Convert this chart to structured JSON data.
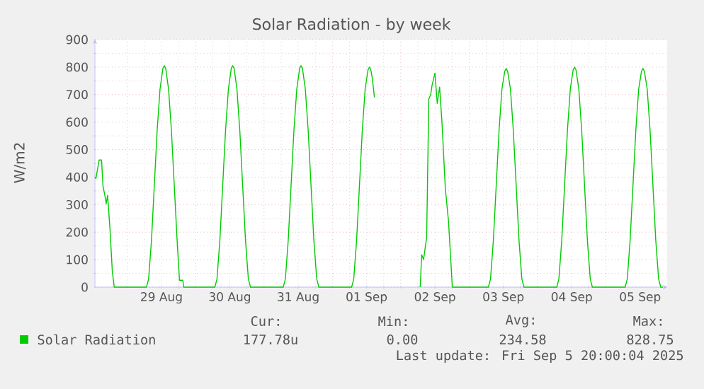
{
  "chart_data": {
    "type": "line",
    "title": "Solar Radiation - by week",
    "ylabel": "W/m2",
    "xlim": [
      "2025-08-28T12:39",
      "2025-09-05T21:30"
    ],
    "ylim": [
      0,
      900
    ],
    "yticks": [
      0,
      100,
      200,
      300,
      400,
      500,
      600,
      700,
      800,
      900
    ],
    "xticks": [
      {
        "value": "2025-08-29T00:00",
        "label": null
      },
      {
        "value": "2025-08-30T00:00",
        "label": null
      },
      {
        "value": "2025-08-31T00:00",
        "label": null
      },
      {
        "value": "2025-09-01T00:00",
        "label": null
      },
      {
        "value": "2025-09-02T00:00",
        "label": null
      },
      {
        "value": "2025-09-03T00:00",
        "label": null
      },
      {
        "value": "2025-09-04T00:00",
        "label": null
      },
      {
        "value": "2025-09-05T00:00",
        "label": null
      },
      {
        "value": "2025-08-29T12:00",
        "label": "29 Aug"
      },
      {
        "value": "2025-08-30T12:00",
        "label": "30 Aug"
      },
      {
        "value": "2025-08-31T12:00",
        "label": "31 Aug"
      },
      {
        "value": "2025-09-01T12:00",
        "label": "01 Sep"
      },
      {
        "value": "2025-09-02T12:00",
        "label": "02 Sep"
      },
      {
        "value": "2025-09-03T12:00",
        "label": "03 Sep"
      },
      {
        "value": "2025-09-04T12:00",
        "label": "04 Sep"
      },
      {
        "value": "2025-09-05T12:00",
        "label": "05 Sep"
      }
    ],
    "grid": true,
    "legend": "bottom left",
    "annotations": [
      "Cur:",
      "177.78u",
      "Min:",
      "0.00",
      "Avg:",
      "234.58",
      "Max:",
      "828.75",
      "Last update: Fri Sep  5 20:00:04 2025"
    ],
    "series": [
      {
        "name": "Solar Radiation",
        "color": "#00cc00",
        "x": [
          "2025-08-28T12:39",
          "2025-08-28T13:00",
          "2025-08-28T14:08",
          "2025-08-28T14:59",
          "2025-08-28T15:29",
          "2025-08-28T16:08",
          "2025-08-28T16:37",
          "2025-08-28T17:07",
          "2025-08-28T17:58",
          "2025-08-28T18:45",
          "2025-08-28T19:26",
          "2025-08-29T06:45",
          "2025-08-29T07:30",
          "2025-08-29T08:30",
          "2025-08-29T09:30",
          "2025-08-29T10:30",
          "2025-08-29T11:30",
          "2025-08-29T12:30",
          "2025-08-29T13:00",
          "2025-08-29T13:30",
          "2025-08-29T14:30",
          "2025-08-29T15:30",
          "2025-08-29T16:30",
          "2025-08-29T17:30",
          "2025-08-29T18:20",
          "2025-08-29T19:30",
          "2025-08-29T19:50",
          "2025-08-30T06:45",
          "2025-08-30T07:30",
          "2025-08-30T08:30",
          "2025-08-30T09:30",
          "2025-08-30T10:30",
          "2025-08-30T11:30",
          "2025-08-30T12:30",
          "2025-08-30T13:00",
          "2025-08-30T13:30",
          "2025-08-30T14:30",
          "2025-08-30T15:30",
          "2025-08-30T16:30",
          "2025-08-30T17:30",
          "2025-08-30T18:30",
          "2025-08-30T19:15",
          "2025-08-31T06:45",
          "2025-08-31T07:30",
          "2025-08-31T08:30",
          "2025-08-31T09:30",
          "2025-08-31T10:30",
          "2025-08-31T11:30",
          "2025-08-31T12:30",
          "2025-08-31T13:00",
          "2025-08-31T13:30",
          "2025-08-31T14:30",
          "2025-08-31T15:30",
          "2025-08-31T16:30",
          "2025-08-31T17:30",
          "2025-08-31T18:30",
          "2025-08-31T19:15",
          "2025-09-01T06:45",
          "2025-09-01T07:30",
          "2025-09-01T08:30",
          "2025-09-01T09:30",
          "2025-09-01T10:30",
          "2025-09-01T11:30",
          "2025-09-01T12:30",
          "2025-09-01T13:00",
          "2025-09-01T13:30",
          "2025-09-01T14:00",
          "2025-09-01T14:45",
          "2025-09-01T20:00",
          "2025-09-02T06:50",
          "2025-09-02T07:20",
          "2025-09-02T08:00",
          "2025-09-02T08:40",
          "2025-09-02T09:05",
          "2025-09-02T09:50",
          "2025-09-02T10:30",
          "2025-09-02T11:00",
          "2025-09-02T12:00",
          "2025-09-02T12:48",
          "2025-09-02T13:38",
          "2025-09-02T14:29",
          "2025-09-02T15:38",
          "2025-09-02T16:46",
          "2025-09-02T18:06",
          "2025-09-03T06:45",
          "2025-09-03T07:30",
          "2025-09-03T08:30",
          "2025-09-03T09:30",
          "2025-09-03T10:30",
          "2025-09-03T11:30",
          "2025-09-03T12:30",
          "2025-09-03T13:00",
          "2025-09-03T13:30",
          "2025-09-03T14:30",
          "2025-09-03T15:30",
          "2025-09-03T16:30",
          "2025-09-03T17:30",
          "2025-09-03T18:30",
          "2025-09-03T19:15",
          "2025-09-04T06:45",
          "2025-09-04T07:30",
          "2025-09-04T08:30",
          "2025-09-04T09:30",
          "2025-09-04T10:30",
          "2025-09-04T11:30",
          "2025-09-04T12:30",
          "2025-09-04T13:00",
          "2025-09-04T13:30",
          "2025-09-04T14:30",
          "2025-09-04T15:30",
          "2025-09-04T16:30",
          "2025-09-04T17:30",
          "2025-09-04T18:30",
          "2025-09-04T19:15",
          "2025-09-05T06:45",
          "2025-09-05T07:30",
          "2025-09-05T08:30",
          "2025-09-05T09:30",
          "2025-09-05T10:30",
          "2025-09-05T11:30",
          "2025-09-05T12:30",
          "2025-09-05T13:00",
          "2025-09-05T13:30",
          "2025-09-05T14:30",
          "2025-09-05T15:30",
          "2025-09-05T16:30",
          "2025-09-05T17:30",
          "2025-09-05T18:30",
          "2025-09-05T19:15",
          "2025-09-05T20:00"
        ],
        "values": [
          400,
          395,
          462,
          462,
          367,
          334,
          303,
          334,
          206,
          58,
          0,
          0,
          30,
          170,
          370,
          570,
          720,
          795,
          805,
          795,
          720,
          570,
          370,
          170,
          25,
          25,
          0,
          0,
          30,
          170,
          370,
          570,
          720,
          795,
          805,
          795,
          720,
          570,
          370,
          170,
          30,
          0,
          0,
          30,
          170,
          370,
          570,
          720,
          795,
          805,
          795,
          720,
          570,
          370,
          170,
          30,
          0,
          0,
          30,
          170,
          370,
          570,
          720,
          790,
          800,
          790,
          760,
          690,
          null,
          0,
          118,
          100,
          150,
          180,
          684,
          700,
          735,
          778,
          668,
          727,
          595,
          360,
          238,
          0,
          0,
          30,
          170,
          370,
          570,
          720,
          785,
          795,
          785,
          720,
          570,
          370,
          170,
          30,
          0,
          0,
          30,
          170,
          370,
          570,
          720,
          790,
          800,
          790,
          720,
          570,
          370,
          170,
          30,
          0,
          0,
          30,
          170,
          370,
          570,
          720,
          785,
          795,
          785,
          720,
          570,
          370,
          170,
          30,
          0,
          0
        ]
      }
    ]
  }
}
